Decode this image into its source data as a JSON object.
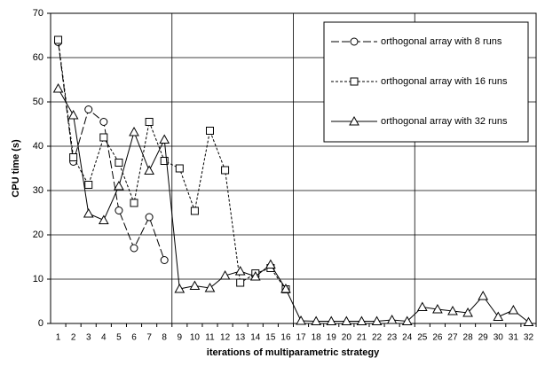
{
  "chart_data": {
    "type": "line",
    "x_label": "iterations of multiparametric strategy",
    "y_label": "CPU time (s)",
    "categories": [
      "1",
      "2",
      "3",
      "4",
      "5",
      "6",
      "7",
      "8",
      "9",
      "10",
      "11",
      "12",
      "13",
      "14",
      "15",
      "16",
      "17",
      "18",
      "19",
      "20",
      "21",
      "22",
      "23",
      "24",
      "25",
      "26",
      "27",
      "28",
      "29",
      "30",
      "31",
      "32"
    ],
    "series": [
      {
        "name": "orthogonal array with 8 runs",
        "color": "#000000",
        "marker": "circle",
        "dash": "9,3",
        "values": [
          63.5,
          36.5,
          48.3,
          45.5,
          25.5,
          17,
          24,
          14.3,
          null,
          null,
          null,
          null,
          null,
          null,
          null,
          null,
          null,
          null,
          null,
          null,
          null,
          null,
          null,
          null,
          null,
          null,
          null,
          null,
          null,
          null,
          null,
          null
        ]
      },
      {
        "name": "orthogonal array with 16 runs",
        "color": "#000000",
        "marker": "square",
        "dash": "3,2",
        "values": [
          64,
          37.5,
          31.3,
          42,
          36.3,
          27.2,
          45.5,
          36.7,
          35,
          25.4,
          43.5,
          34.6,
          9.2,
          11.3,
          12.5,
          7.7,
          null,
          null,
          null,
          null,
          null,
          null,
          null,
          null,
          null,
          null,
          null,
          null,
          null,
          null,
          null,
          null
        ]
      },
      {
        "name": "orthogonal array with 32 runs",
        "color": "#000000",
        "marker": "triangle",
        "dash": "none",
        "values": [
          53,
          47,
          24.8,
          23.3,
          31,
          43.2,
          34.5,
          41.5,
          7.8,
          8.5,
          8,
          10.8,
          11.8,
          10.6,
          13.3,
          7.8,
          0.6,
          0.5,
          0.5,
          0.5,
          0.5,
          0.5,
          0.8,
          0.5,
          3.7,
          3.2,
          2.8,
          2.4,
          6.2,
          1.5,
          3,
          0.3
        ]
      }
    ],
    "ylim": [
      0,
      70
    ],
    "yticks": [
      0,
      10,
      20,
      30,
      40,
      50,
      60,
      70
    ],
    "grid": true,
    "x_grid_interval": 8,
    "legend": "top-right"
  }
}
